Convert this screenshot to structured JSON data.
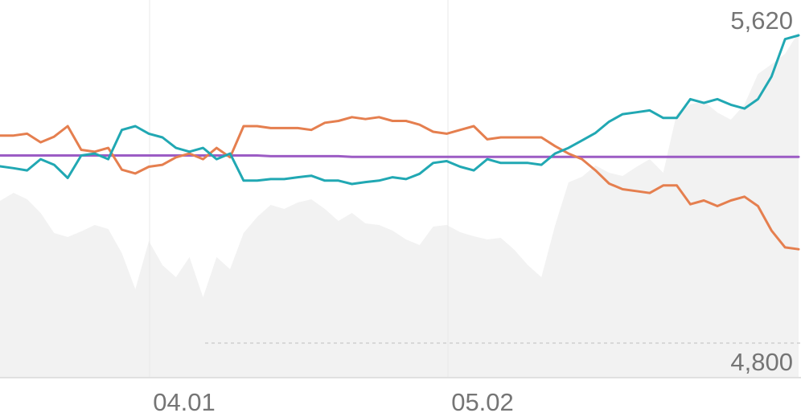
{
  "chart_data": {
    "type": "line",
    "x_tick_labels": [
      "04.01",
      "05.02"
    ],
    "value_labels": {
      "max": "5,620",
      "min": "4,800"
    },
    "grid": true,
    "colors": {
      "series_teal": "#21a8b3",
      "series_orange": "#e57f4f",
      "series_purple": "#9c5cc4",
      "background_area": "#f2f2f2",
      "gridline": "#e8e8e8",
      "baseline": "#e0e0e0",
      "text": "#757575"
    },
    "x": [
      1,
      2,
      3,
      4,
      5,
      6,
      7,
      8,
      9,
      10,
      11,
      12,
      13,
      14,
      15,
      16,
      17,
      18,
      19,
      20,
      21,
      22,
      23,
      24,
      25,
      26,
      27,
      28,
      29,
      30,
      31,
      32,
      33,
      34,
      35,
      36,
      37,
      38,
      39,
      40,
      41,
      42,
      43,
      44,
      45,
      46,
      47,
      48,
      49,
      50,
      51,
      52,
      53,
      54,
      55,
      56,
      57,
      58,
      59,
      60
    ],
    "series": [
      {
        "values": [
          5271,
          5266,
          5260,
          5290,
          5275,
          5240,
          5300,
          5305,
          5290,
          5368,
          5378,
          5358,
          5348,
          5320,
          5310,
          5320,
          5290,
          5305,
          5233,
          5233,
          5237,
          5237,
          5242,
          5246,
          5233,
          5233,
          5224,
          5229,
          5233,
          5242,
          5237,
          5251,
          5280,
          5285,
          5270,
          5260,
          5290,
          5280,
          5280,
          5280,
          5275,
          5305,
          5320,
          5340,
          5360,
          5390,
          5410,
          5415,
          5420,
          5400,
          5400,
          5450,
          5440,
          5450,
          5435,
          5425,
          5450,
          5510,
          5610,
          5620
        ]
      },
      {
        "values": [
          5353,
          5353,
          5358,
          5335,
          5350,
          5378,
          5315,
          5310,
          5320,
          5262,
          5252,
          5270,
          5275,
          5295,
          5305,
          5290,
          5320,
          5295,
          5378,
          5378,
          5373,
          5373,
          5373,
          5368,
          5387,
          5392,
          5402,
          5397,
          5402,
          5392,
          5392,
          5382,
          5363,
          5358,
          5368,
          5378,
          5343,
          5348,
          5348,
          5348,
          5348,
          5325,
          5305,
          5290,
          5260,
          5225,
          5210,
          5205,
          5200,
          5220,
          5220,
          5170,
          5180,
          5165,
          5180,
          5190,
          5165,
          5100,
          5055,
          5050
        ]
      },
      {
        "values": [
          5300,
          5300,
          5300,
          5300,
          5300,
          5300,
          5300,
          5300,
          5300,
          5300,
          5300,
          5300,
          5300,
          5300,
          5300,
          5300,
          5300,
          5300,
          5300,
          5300,
          5298,
          5298,
          5298,
          5298,
          5298,
          5298,
          5296,
          5296,
          5296,
          5296,
          5296,
          5296,
          5296,
          5296,
          5296,
          5296,
          5296,
          5296,
          5296,
          5296,
          5296,
          5296,
          5296,
          5296,
          5296,
          5296,
          5296,
          5296,
          5296,
          5296,
          5296,
          5296,
          5296,
          5296,
          5296,
          5296,
          5296,
          5296,
          5296,
          5296
        ]
      }
    ],
    "background_area": {
      "values": [
        220,
        230,
        222,
        205,
        180,
        175,
        182,
        190,
        185,
        155,
        110,
        170,
        140,
        125,
        150,
        100,
        150,
        135,
        180,
        200,
        215,
        210,
        218,
        222,
        210,
        195,
        205,
        192,
        190,
        183,
        172,
        165,
        188,
        190,
        181,
        176,
        172,
        174,
        159,
        140,
        125,
        189,
        243,
        250,
        264,
        255,
        251,
        262,
        272,
        255,
        329,
        340,
        344,
        330,
        321,
        340,
        378,
        390,
        403,
        430
      ]
    }
  }
}
